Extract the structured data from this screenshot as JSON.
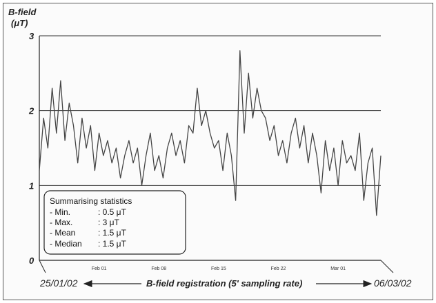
{
  "chart_data": {
    "type": "line",
    "ylabel_line1": "B-field",
    "ylabel_line2": "(μT)",
    "y_ticks": [
      "0",
      "1",
      "2",
      "3"
    ],
    "ylim": [
      0,
      3
    ],
    "x_tick_labels": [
      "Feb 01",
      "Feb 08",
      "Feb 15",
      "Feb 22",
      "Mar 01"
    ],
    "x_tick_days": [
      7,
      14,
      21,
      28,
      35
    ],
    "start_date": "25/01/02",
    "end_date": "06/03/02",
    "xlabel": "B-field registration (5' sampling rate)",
    "grid": "horizontal",
    "series": [
      {
        "x_days": [
          0.0,
          0.5,
          1.0,
          1.5,
          2.0,
          2.5,
          3.0,
          3.5,
          4.0,
          4.5,
          5.0,
          5.5,
          6.0,
          6.5,
          7.0,
          7.5,
          8.0,
          8.5,
          9.0,
          9.5,
          10.0,
          10.5,
          11.0,
          11.5,
          12.0,
          12.5,
          13.0,
          13.5,
          14.0,
          14.5,
          15.0,
          15.5,
          16.0,
          16.5,
          17.0,
          17.5,
          18.0,
          18.5,
          19.0,
          19.5,
          20.0,
          20.5,
          21.0,
          21.5,
          22.0,
          22.5,
          23.0,
          23.5,
          24.0,
          24.5,
          25.0,
          25.5,
          26.0,
          26.5,
          27.0,
          27.5,
          28.0,
          28.5,
          29.0,
          29.5,
          30.0,
          30.5,
          31.0,
          31.5,
          32.0,
          32.5,
          33.0,
          33.5,
          34.0,
          34.5,
          35.0,
          35.5,
          36.0,
          36.5,
          37.0,
          37.5,
          38.0,
          38.5,
          39.0,
          39.5,
          40.0
        ],
        "values": [
          1.2,
          1.9,
          1.5,
          2.3,
          1.7,
          2.4,
          1.6,
          2.1,
          1.8,
          1.3,
          1.9,
          1.5,
          1.8,
          1.2,
          1.7,
          1.4,
          1.6,
          1.3,
          1.5,
          1.1,
          1.4,
          1.6,
          1.3,
          1.5,
          1.0,
          1.4,
          1.7,
          1.2,
          1.4,
          1.1,
          1.5,
          1.7,
          1.4,
          1.6,
          1.3,
          1.8,
          1.7,
          2.3,
          1.8,
          2.0,
          1.7,
          1.5,
          1.6,
          1.2,
          1.7,
          1.4,
          0.8,
          2.8,
          1.7,
          2.5,
          1.9,
          2.3,
          2.0,
          1.9,
          1.6,
          1.8,
          1.4,
          1.6,
          1.3,
          1.7,
          1.9,
          1.5,
          1.8,
          1.3,
          1.7,
          1.4,
          0.9,
          1.6,
          1.2,
          1.5,
          1.0,
          1.6,
          1.3,
          1.4,
          1.2,
          1.7,
          0.8,
          1.3,
          1.5,
          0.6,
          1.4
        ]
      }
    ]
  },
  "stats_box": {
    "title": "Summarising statistics",
    "rows": [
      {
        "label": "- Min.",
        "value": ": 0.5 μT"
      },
      {
        "label": "- Max.",
        "value": ": 3 μT"
      },
      {
        "label": "- Mean",
        "value": ": 1.5 μT"
      },
      {
        "label": "- Median",
        "value": ": 1.5 μT"
      }
    ]
  }
}
